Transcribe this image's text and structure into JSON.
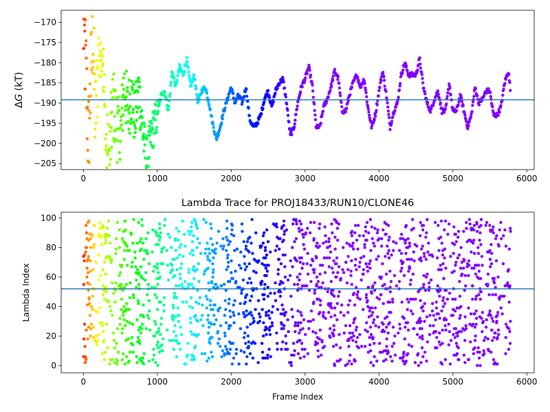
{
  "chart_data": [
    {
      "type": "scatter",
      "title": "",
      "xlabel": "",
      "ylabel_prefix": "Δ",
      "ylabel_var": "G",
      "ylabel_suffix": " (kT)",
      "xlim": [
        -300,
        6100
      ],
      "ylim": [
        -206.5,
        -167
      ],
      "xticks": [
        0,
        1000,
        2000,
        3000,
        4000,
        5000,
        6000
      ],
      "yticks": [
        -205,
        -200,
        -195,
        -190,
        -185,
        -180,
        -175,
        -170
      ],
      "hline": -189.2,
      "hline_color": "#1f77b4",
      "colormap": "rainbow (red → violet with frame index)",
      "x_max": 5780,
      "trace": [
        [
          0,
          -170
        ],
        [
          30,
          -180
        ],
        [
          50,
          -190
        ],
        [
          70,
          -200
        ],
        [
          100,
          -185
        ],
        [
          130,
          -172
        ],
        [
          160,
          -195
        ],
        [
          200,
          -180
        ],
        [
          250,
          -170
        ],
        [
          300,
          -200
        ],
        [
          350,
          -205
        ],
        [
          400,
          -190
        ],
        [
          450,
          -195
        ],
        [
          500,
          -200
        ],
        [
          550,
          -185
        ],
        [
          600,
          -192
        ],
        [
          650,
          -188
        ],
        [
          700,
          -194
        ],
        [
          750,
          -186
        ],
        [
          800,
          -196
        ],
        [
          850,
          -205
        ],
        [
          900,
          -200
        ],
        [
          950,
          -196
        ],
        [
          1000,
          -193
        ],
        [
          1050,
          -188
        ],
        [
          1100,
          -187
        ],
        [
          1150,
          -192
        ],
        [
          1200,
          -182
        ],
        [
          1250,
          -186
        ],
        [
          1300,
          -181
        ],
        [
          1350,
          -183
        ],
        [
          1400,
          -179
        ],
        [
          1450,
          -186
        ],
        [
          1500,
          -183
        ],
        [
          1550,
          -190
        ],
        [
          1600,
          -187
        ],
        [
          1650,
          -186
        ],
        [
          1700,
          -190
        ],
        [
          1750,
          -195
        ],
        [
          1800,
          -199
        ],
        [
          1850,
          -196
        ],
        [
          1900,
          -192
        ],
        [
          1950,
          -189
        ],
        [
          2000,
          -186
        ],
        [
          2050,
          -190
        ],
        [
          2100,
          -188
        ],
        [
          2150,
          -190
        ],
        [
          2200,
          -186
        ],
        [
          2250,
          -194
        ],
        [
          2300,
          -196
        ],
        [
          2350,
          -195
        ],
        [
          2400,
          -193
        ],
        [
          2450,
          -189
        ],
        [
          2500,
          -187
        ],
        [
          2550,
          -191
        ],
        [
          2600,
          -187
        ],
        [
          2650,
          -185
        ],
        [
          2700,
          -184
        ],
        [
          2750,
          -190
        ],
        [
          2800,
          -198
        ],
        [
          2850,
          -196
        ],
        [
          2900,
          -190
        ],
        [
          2950,
          -186
        ],
        [
          3000,
          -184
        ],
        [
          3050,
          -181
        ],
        [
          3100,
          -186
        ],
        [
          3150,
          -196
        ],
        [
          3200,
          -196
        ],
        [
          3250,
          -191
        ],
        [
          3300,
          -189
        ],
        [
          3350,
          -186
        ],
        [
          3400,
          -182
        ],
        [
          3450,
          -184
        ],
        [
          3500,
          -192
        ],
        [
          3550,
          -192
        ],
        [
          3600,
          -188
        ],
        [
          3650,
          -185
        ],
        [
          3700,
          -183
        ],
        [
          3750,
          -186
        ],
        [
          3800,
          -184
        ],
        [
          3850,
          -191
        ],
        [
          3900,
          -196
        ],
        [
          3950,
          -193
        ],
        [
          4000,
          -187
        ],
        [
          4050,
          -182
        ],
        [
          4100,
          -188
        ],
        [
          4150,
          -196
        ],
        [
          4200,
          -192
        ],
        [
          4250,
          -190
        ],
        [
          4300,
          -183
        ],
        [
          4350,
          -180
        ],
        [
          4400,
          -183
        ],
        [
          4450,
          -183
        ],
        [
          4500,
          -183
        ],
        [
          4550,
          -179
        ],
        [
          4600,
          -186
        ],
        [
          4650,
          -190
        ],
        [
          4700,
          -192
        ],
        [
          4750,
          -189
        ],
        [
          4800,
          -187
        ],
        [
          4850,
          -192
        ],
        [
          4900,
          -192
        ],
        [
          4950,
          -185
        ],
        [
          5000,
          -192
        ],
        [
          5050,
          -192
        ],
        [
          5100,
          -188
        ],
        [
          5150,
          -192
        ],
        [
          5200,
          -196
        ],
        [
          5250,
          -193
        ],
        [
          5300,
          -186
        ],
        [
          5350,
          -190
        ],
        [
          5400,
          -189
        ],
        [
          5450,
          -187
        ],
        [
          5500,
          -187
        ],
        [
          5550,
          -193
        ],
        [
          5600,
          -193
        ],
        [
          5650,
          -191
        ],
        [
          5700,
          -185
        ],
        [
          5750,
          -182
        ],
        [
          5780,
          -187
        ]
      ]
    },
    {
      "type": "scatter",
      "title": "Lambda Trace for PROJ18433/RUN10/CLONE46",
      "xlabel": "Frame Index",
      "ylabel": "Lambda Index",
      "xlim": [
        -300,
        6100
      ],
      "ylim": [
        -5,
        104
      ],
      "xticks": [
        0,
        1000,
        2000,
        3000,
        4000,
        5000,
        6000
      ],
      "yticks": [
        0,
        20,
        40,
        60,
        80,
        100
      ],
      "hline": 52,
      "hline_color": "#1f77b4",
      "colormap": "rainbow (red → violet with frame index)",
      "x_max": 5780,
      "value_range": [
        0,
        99
      ]
    }
  ]
}
